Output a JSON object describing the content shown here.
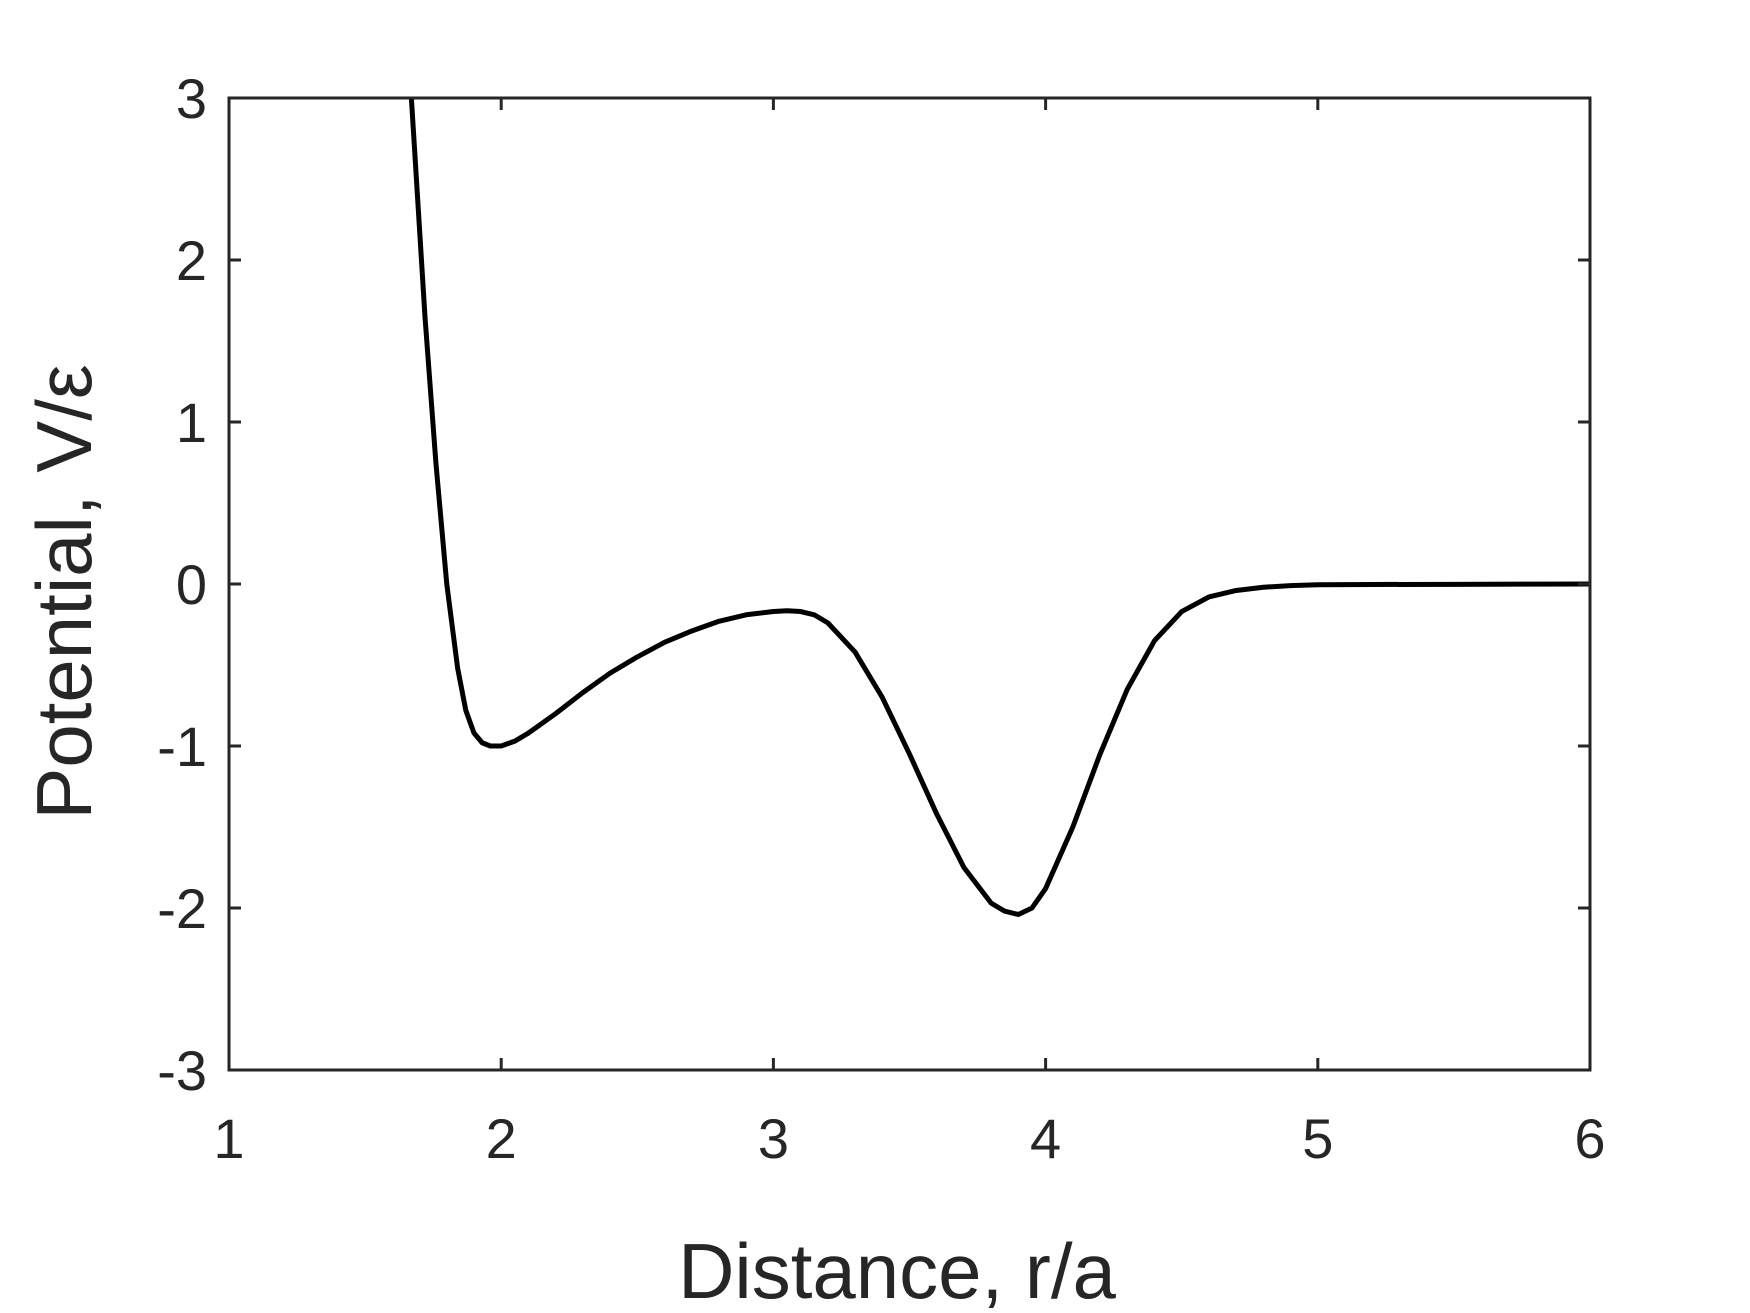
{
  "chart_data": {
    "type": "line",
    "xlabel": "Distance, r/a",
    "ylabel": "Potential, V/ε",
    "xlim": [
      1,
      6
    ],
    "ylim": [
      -3,
      3
    ],
    "xticks": [
      "1",
      "2",
      "3",
      "4",
      "5",
      "6"
    ],
    "yticks": [
      "-3",
      "-2",
      "-1",
      "0",
      "1",
      "2",
      "3"
    ],
    "grid": false,
    "box": true,
    "colors": {
      "line": "#000000",
      "axis": "#262626",
      "background": "#ffffff"
    },
    "series": [
      {
        "x": [
          1.67,
          1.72,
          1.76,
          1.8,
          1.84,
          1.87,
          1.9,
          1.93,
          1.96,
          2.0,
          2.05,
          2.1,
          2.2,
          2.3,
          2.4,
          2.5,
          2.6,
          2.7,
          2.8,
          2.9,
          3.0,
          3.05,
          3.1,
          3.15,
          3.2,
          3.3,
          3.4,
          3.5,
          3.6,
          3.7,
          3.8,
          3.85,
          3.9,
          3.95,
          4.0,
          4.1,
          4.2,
          4.3,
          4.4,
          4.5,
          4.6,
          4.7,
          4.8,
          4.9,
          5.0,
          5.2,
          5.5,
          5.8,
          6.0
        ],
        "y": [
          3.0,
          1.65,
          0.75,
          0.0,
          -0.52,
          -0.78,
          -0.92,
          -0.98,
          -1.0,
          -1.0,
          -0.97,
          -0.92,
          -0.8,
          -0.67,
          -0.55,
          -0.45,
          -0.36,
          -0.29,
          -0.23,
          -0.19,
          -0.17,
          -0.165,
          -0.17,
          -0.19,
          -0.24,
          -0.42,
          -0.7,
          -1.05,
          -1.42,
          -1.75,
          -1.97,
          -2.02,
          -2.04,
          -2.0,
          -1.88,
          -1.5,
          -1.05,
          -0.65,
          -0.35,
          -0.17,
          -0.08,
          -0.04,
          -0.02,
          -0.01,
          -0.005,
          -0.003,
          -0.002,
          -0.001,
          0.0
        ]
      }
    ]
  }
}
